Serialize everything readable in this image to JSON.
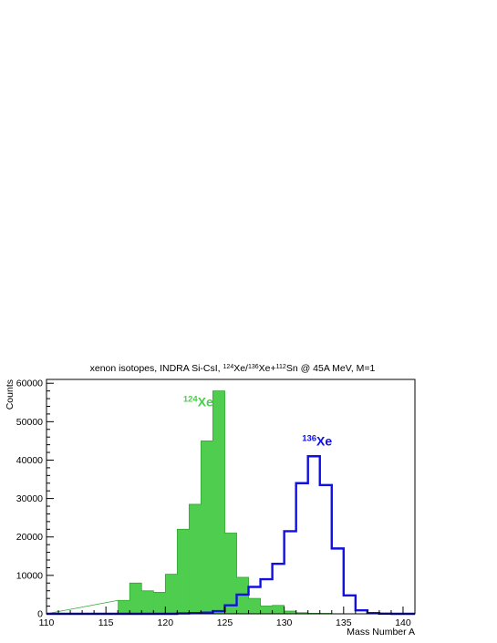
{
  "chart_data": {
    "type": "histogram",
    "title": {
      "prefix": "xenon isotopes, INDRA Si-CsI, ",
      "sup1": "124",
      "mid1": "Xe/",
      "sup2": "136",
      "mid2": "Xe+",
      "sup3": "112",
      "suffix": "Sn @ 45A MeV, M=1"
    },
    "xlabel": "Mass Number A",
    "ylabel": "Counts",
    "xlim": [
      110,
      141
    ],
    "ylim": [
      0,
      61000
    ],
    "x_ticks": [
      110,
      115,
      120,
      125,
      130,
      135,
      140
    ],
    "y_ticks": [
      0,
      10000,
      20000,
      30000,
      40000,
      50000,
      60000
    ],
    "bin_width": 1,
    "series": [
      {
        "color": "#4fcd4f",
        "style": "filled",
        "bins": [
          [
            116,
            3500
          ],
          [
            117,
            8000
          ],
          [
            118,
            6000
          ],
          [
            119,
            5600
          ],
          [
            120,
            10300
          ],
          [
            121,
            22000
          ],
          [
            122,
            28500
          ],
          [
            123,
            45000
          ],
          [
            124,
            58000
          ],
          [
            125,
            21000
          ],
          [
            126,
            9500
          ],
          [
            127,
            4000
          ],
          [
            128,
            2000
          ],
          [
            129,
            2200
          ],
          [
            130,
            700
          ],
          [
            131,
            300
          ],
          [
            132,
            150
          ],
          [
            133,
            100
          ]
        ]
      },
      {
        "color": "#1010e0",
        "style": "step",
        "bins": [
          [
            121,
            100
          ],
          [
            122,
            200
          ],
          [
            123,
            300
          ],
          [
            124,
            700
          ],
          [
            125,
            2200
          ],
          [
            126,
            5000
          ],
          [
            127,
            7000
          ],
          [
            128,
            9000
          ],
          [
            129,
            13000
          ],
          [
            130,
            21500
          ],
          [
            131,
            34000
          ],
          [
            132,
            41000
          ],
          [
            133,
            33500
          ],
          [
            134,
            17000
          ],
          [
            135,
            4800
          ],
          [
            136,
            900
          ],
          [
            137,
            200
          ],
          [
            138,
            50
          ],
          [
            139,
            0
          ],
          [
            140,
            0
          ]
        ]
      }
    ],
    "annotations": [
      {
        "sup": "124",
        "text": "Xe",
        "color": "#4fcd4f",
        "x": 121.5,
        "y": 54000
      },
      {
        "sup": "136",
        "text": "Xe",
        "color": "#1010e0",
        "x": 131.5,
        "y": 43800
      }
    ]
  }
}
